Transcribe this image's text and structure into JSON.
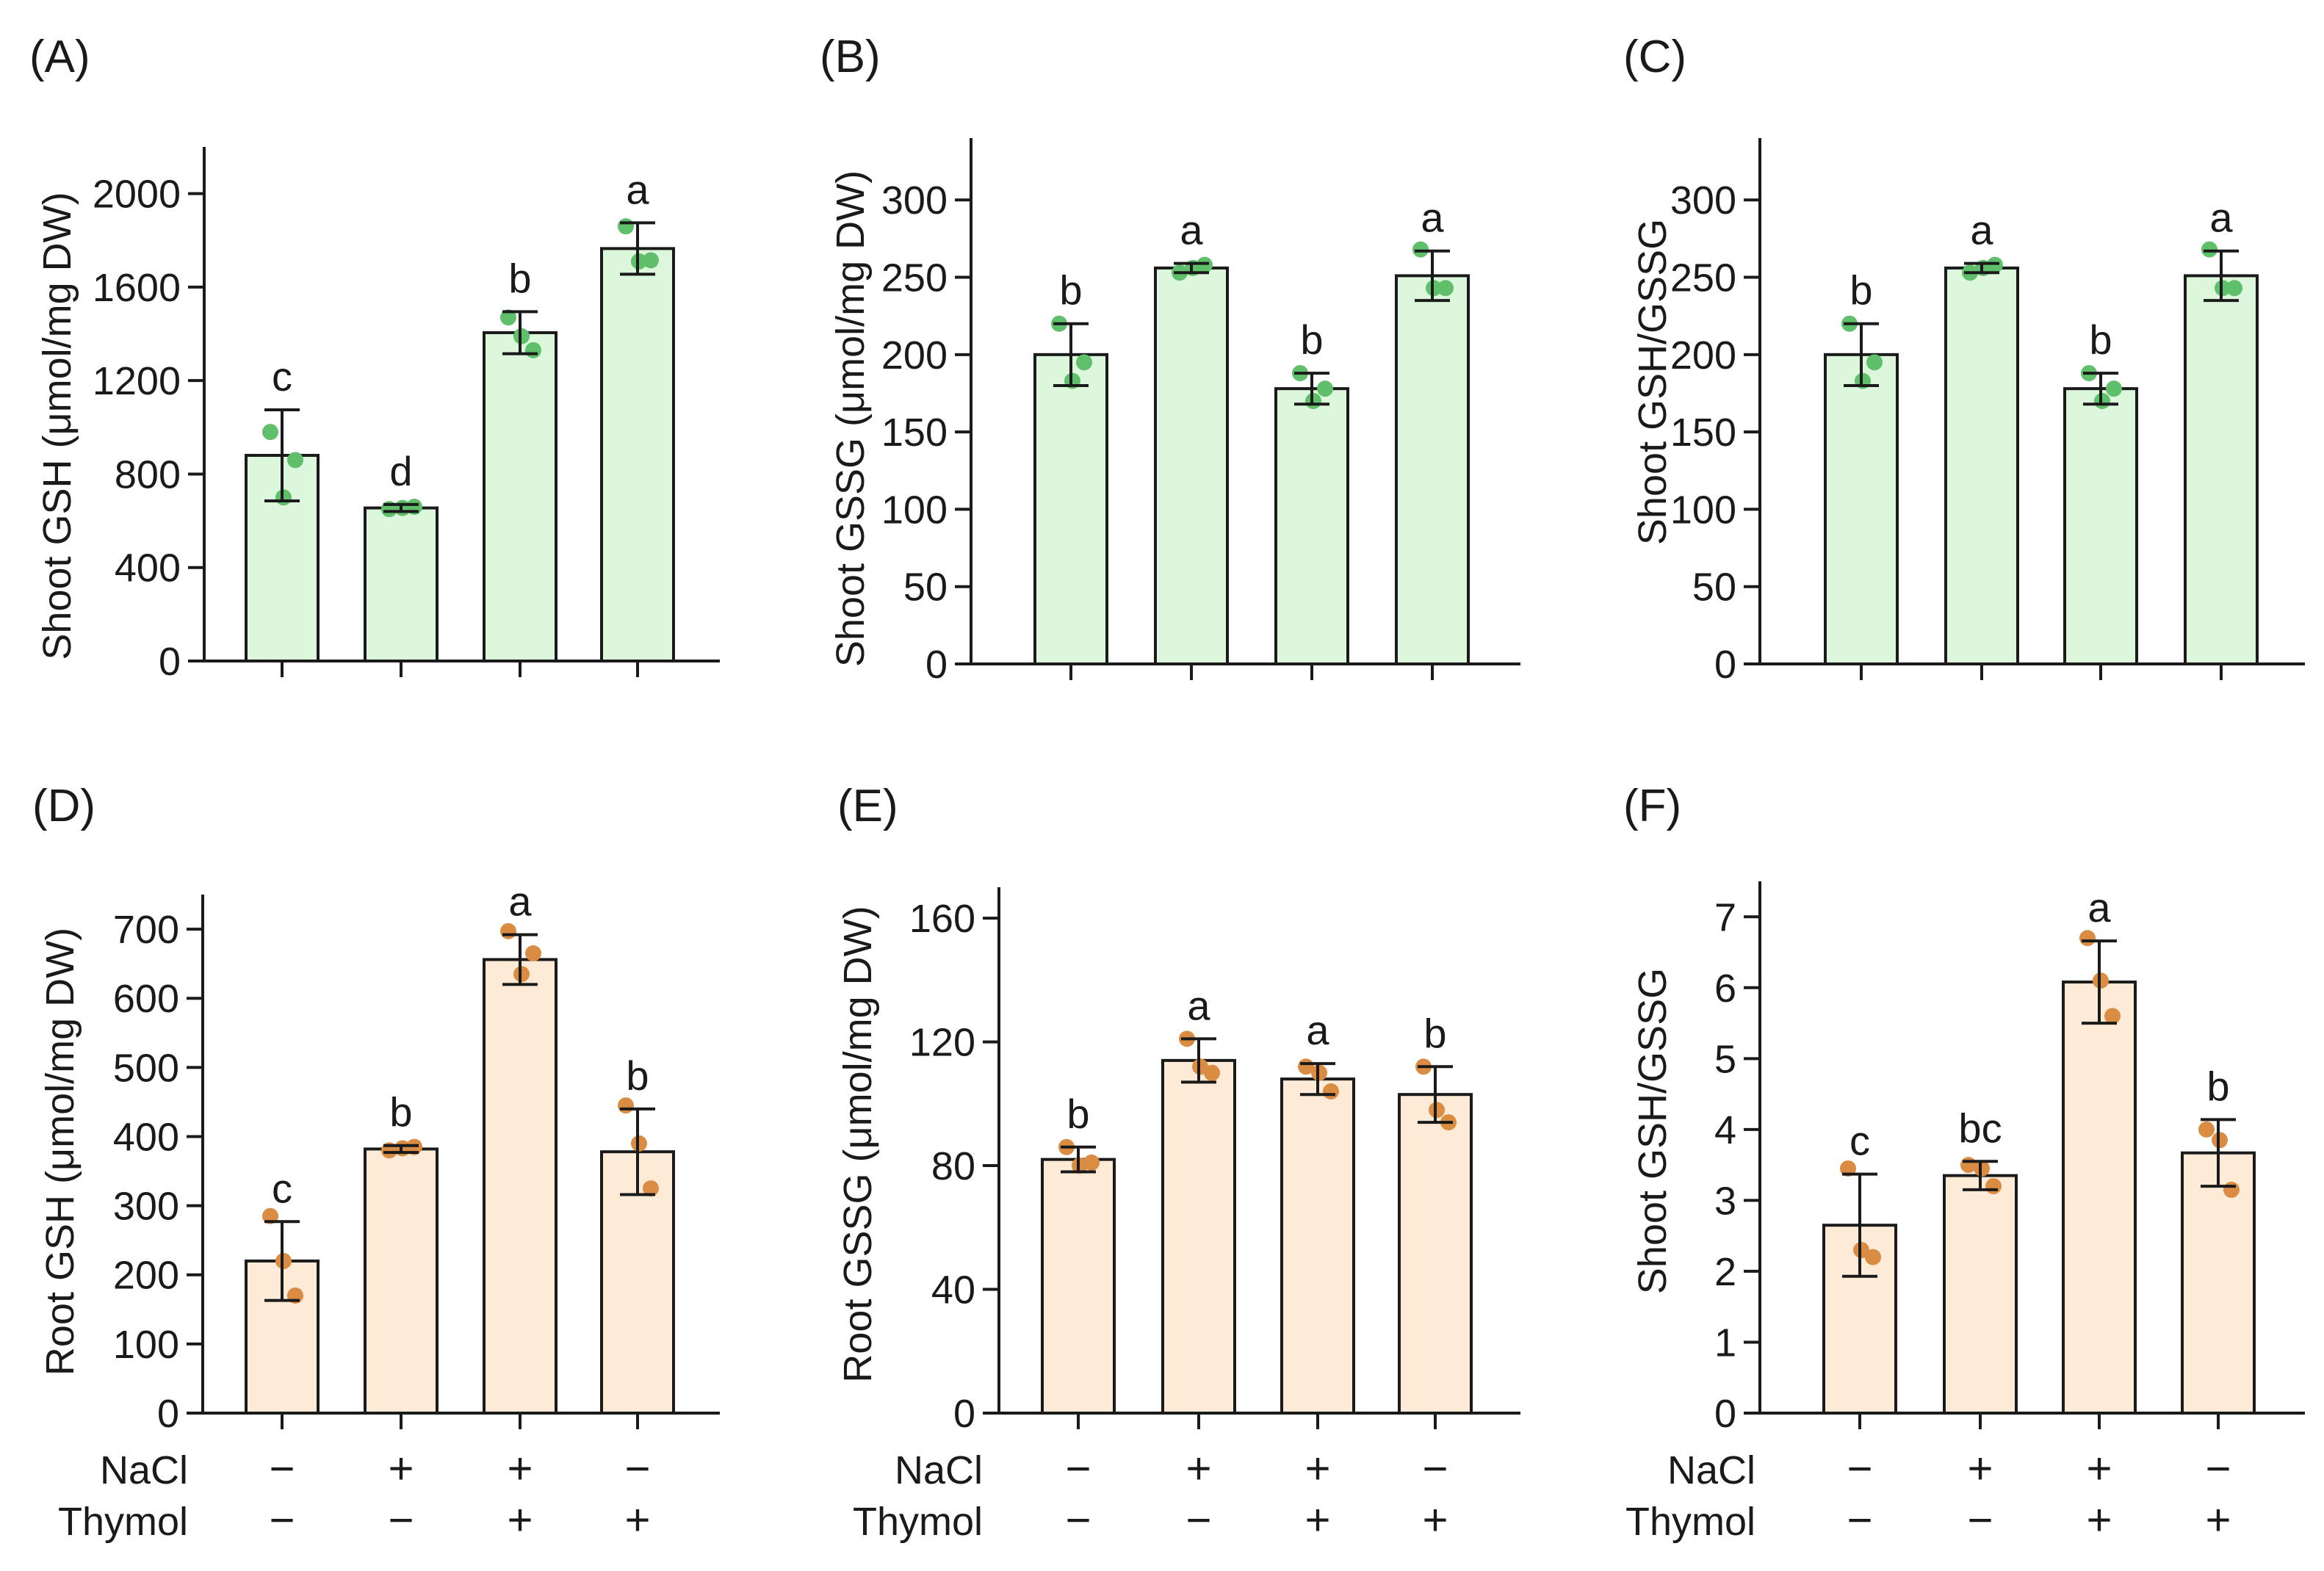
{
  "colors": {
    "shoot_bar": "#ddf7dd",
    "shoot_dot": "#5fbf6a",
    "root_bar": "#fdebd7",
    "root_dot": "#d98c42",
    "ink": "#1a1a1a"
  },
  "x_labels": {
    "nacl": "NaCl",
    "thymol": "Thymol",
    "nacl_signs": [
      "−",
      "+",
      "+",
      "−"
    ],
    "thymol_signs": [
      "−",
      "−",
      "+",
      "+"
    ]
  },
  "chart_data": [
    {
      "panel": "(A)",
      "type": "bar",
      "tissue": "shoot",
      "ylabel": "Shoot GSH (μmol/mg DW)",
      "ylim": [
        0,
        2200
      ],
      "ticks": [
        0,
        400,
        800,
        1200,
        1600,
        2000
      ],
      "tick_labels": [
        "0",
        "400",
        "800",
        "1200",
        "1600",
        "2000"
      ],
      "values": [
        880,
        655,
        1405,
        1765
      ],
      "errors": [
        195,
        15,
        90,
        110
      ],
      "letters": [
        "c",
        "d",
        "b",
        "a"
      ],
      "points": [
        [
          980,
          700,
          860
        ],
        [
          650,
          655,
          660
        ],
        [
          1470,
          1390,
          1330
        ],
        [
          1860,
          1710,
          1715
        ]
      ]
    },
    {
      "panel": "(B)",
      "type": "bar",
      "tissue": "shoot",
      "ylabel": "Shoot GSSG (μmol/mg DW)",
      "ylim": [
        0,
        340
      ],
      "ticks": [
        0,
        50,
        100,
        150,
        200,
        250,
        300
      ],
      "tick_labels": [
        "0",
        "50",
        "100",
        "150",
        "200",
        "250",
        "300"
      ],
      "values": [
        200,
        256,
        178,
        251
      ],
      "errors": [
        20,
        3,
        10,
        16
      ],
      "letters": [
        "b",
        "a",
        "b",
        "a"
      ],
      "points": [
        [
          220,
          183,
          195
        ],
        [
          253,
          256,
          258
        ],
        [
          188,
          170,
          178
        ],
        [
          268,
          243,
          243
        ]
      ]
    },
    {
      "panel": "(C)",
      "type": "bar",
      "tissue": "shoot",
      "ylabel": "Shoot GSH/GSSG",
      "ylim": [
        0,
        340
      ],
      "ticks": [
        0,
        50,
        100,
        150,
        200,
        250,
        300
      ],
      "tick_labels": [
        "0",
        "50",
        "100",
        "150",
        "200",
        "250",
        "300"
      ],
      "values": [
        200,
        256,
        178,
        251
      ],
      "errors": [
        20,
        3,
        10,
        16
      ],
      "letters": [
        "b",
        "a",
        "b",
        "a"
      ],
      "points": [
        [
          220,
          183,
          195
        ],
        [
          253,
          256,
          258
        ],
        [
          188,
          170,
          178
        ],
        [
          268,
          243,
          243
        ]
      ]
    },
    {
      "panel": "(D)",
      "type": "bar",
      "tissue": "root",
      "ylabel": "Root GSH (μmol/mg DW)",
      "ylim": [
        0,
        750
      ],
      "ticks": [
        0,
        100,
        200,
        300,
        400,
        500,
        600,
        700
      ],
      "tick_labels": [
        "0",
        "100",
        "200",
        "300",
        "400",
        "500",
        "600",
        "700"
      ],
      "values": [
        220,
        382,
        656,
        378
      ],
      "errors": [
        57,
        5,
        36,
        62
      ],
      "letters": [
        "c",
        "b",
        "a",
        "b"
      ],
      "points": [
        [
          285,
          220,
          170
        ],
        [
          380,
          383,
          385
        ],
        [
          697,
          635,
          665
        ],
        [
          445,
          390,
          325
        ]
      ]
    },
    {
      "panel": "(E)",
      "type": "bar",
      "tissue": "root",
      "ylabel": "Root GSSG (μmol/mg DW)",
      "ylim": [
        0,
        170
      ],
      "ticks": [
        0,
        40,
        80,
        120,
        160
      ],
      "tick_labels": [
        "0",
        "40",
        "80",
        "120",
        "160"
      ],
      "values": [
        82,
        114,
        108,
        103
      ],
      "errors": [
        4,
        7,
        5,
        9
      ],
      "letters": [
        "b",
        "a",
        "a",
        "b"
      ],
      "points": [
        [
          86,
          80,
          81
        ],
        [
          121,
          112,
          110
        ],
        [
          112,
          110,
          104
        ],
        [
          112,
          98,
          94
        ]
      ]
    },
    {
      "panel": "(F)",
      "type": "bar",
      "tissue": "root",
      "ylabel": "Shoot GSH/GSSG",
      "ylim": [
        0,
        7.5
      ],
      "ticks": [
        0,
        1,
        2,
        3,
        4,
        5,
        6,
        7
      ],
      "tick_labels": [
        "0",
        "1",
        "2",
        "3",
        "4",
        "5",
        "6",
        "7"
      ],
      "values": [
        2.65,
        3.35,
        6.08,
        3.67
      ],
      "errors": [
        0.72,
        0.2,
        0.58,
        0.47
      ],
      "letters": [
        "c",
        "bc",
        "a",
        "b"
      ],
      "points": [
        [
          3.45,
          2.3,
          2.2
        ],
        [
          3.5,
          3.45,
          3.2
        ],
        [
          6.7,
          6.1,
          5.6
        ],
        [
          4.0,
          3.85,
          3.15
        ]
      ]
    }
  ]
}
